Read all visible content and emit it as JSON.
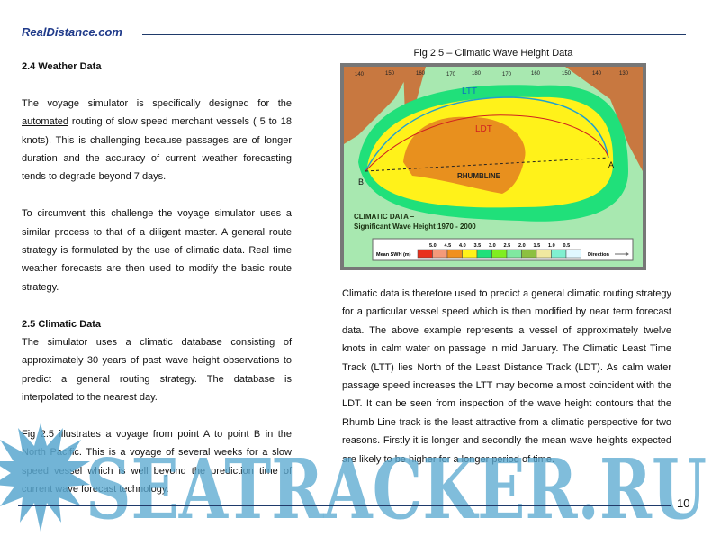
{
  "header": {
    "site": "RealDistance.com"
  },
  "left": {
    "s1_title": "2.4 Weather Data",
    "s1_p1_pre": "The voyage simulator is specifically designed for the ",
    "s1_p1_link": "automated",
    "s1_p1_post": " routing of slow speed merchant vessels ( 5 to 18 knots). This is challenging because passages are of longer duration and the accuracy of current weather forecasting tends to degrade beyond 7 days.",
    "s1_p2": "To circumvent this challenge the voyage simulator uses a similar process to that of a diligent master. A general route strategy is formulated by the use of climatic data. Real time weather forecasts are then used to modify the basic route strategy.",
    "s2_title": "2.5 Climatic Data",
    "s2_p1": "The simulator uses a climatic database consisting of approximately 30 years of past wave height observations to predict a general routing strategy. The database is interpolated to the nearest day.",
    "s2_p2": "Fig 2.5  illustrates a voyage from point A to point B in the North Pacific. This is a voyage of several weeks for a slow speed vessel which is well beyond the prediction time of current wave forecast technology."
  },
  "figure": {
    "caption": "Fig 2.5 – Climatic Wave Height Data",
    "lon_labels": [
      "140",
      "150",
      "160",
      "170",
      "180",
      "170",
      "160",
      "150",
      "140",
      "130"
    ],
    "route_labels": {
      "ltt": "LTT",
      "ldt": "LDT",
      "rhumb": "RHUMBLINE",
      "a": "A",
      "b": "B"
    },
    "title1": "CLIMATIC DATA –",
    "title2": "Significant Wave Height 1970 - 2000",
    "legend_label": "Mean SWH (m)",
    "legend_values": [
      "5.0",
      "4.5",
      "4.0",
      "3.5",
      "3.0",
      "2.5",
      "2.0",
      "1.5",
      "1.0",
      "0.5"
    ],
    "legend_colors": [
      "#e8301c",
      "#f49a7a",
      "#f0901e",
      "#fff21a",
      "#20e07a",
      "#80ee20",
      "#80e8a0",
      "#8cc040",
      "#f0e8a0",
      "#80f0d0",
      "#e0f8ff"
    ],
    "direction_label": "Direction"
  },
  "right": {
    "p1": "Climatic data is therefore used to predict a general climatic routing strategy for a particular vessel speed which is then modified by near term forecast data. The above example represents a vessel of approximately twelve knots in calm water on passage in mid January. The Climatic Least Time Track (LTT) lies North of the Least Distance Track (LDT).  As calm water passage speed increases the LTT may become almost coincident with the LDT. It can be seen from inspection of the wave height contours that the Rhumb Line track is the least attractive from a climatic perspective for two reasons. Firstly it is longer and secondly the mean wave heights expected  are likely to be higher for a longer period of time."
  },
  "footer": {
    "page": "10"
  },
  "watermark": "SEATRACKER.RU"
}
